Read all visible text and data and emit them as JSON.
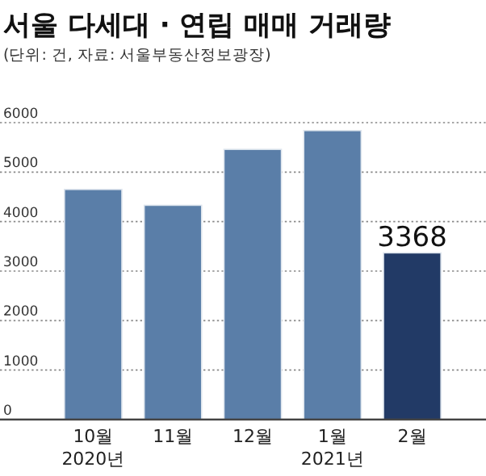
{
  "chart_data": {
    "type": "bar",
    "title": "서울 다세대 · 연립 매매 거래량",
    "subtitle": "(단위: 건, 자료: 서울부동산정보광장)",
    "categories": [
      "10월\n2020년",
      "11월",
      "12월",
      "1월\n2021년",
      "2월"
    ],
    "values": [
      4650,
      4330,
      5460,
      5840,
      3368
    ],
    "colors": [
      "#5a7ea8",
      "#5a7ea8",
      "#5a7ea8",
      "#5a7ea8",
      "#223a66"
    ],
    "value_labels": [
      null,
      null,
      null,
      null,
      "3368"
    ],
    "ylim": [
      0,
      6000
    ],
    "yticks": [
      0,
      1000,
      2000,
      3000,
      4000,
      5000,
      6000
    ],
    "grid": "y"
  }
}
